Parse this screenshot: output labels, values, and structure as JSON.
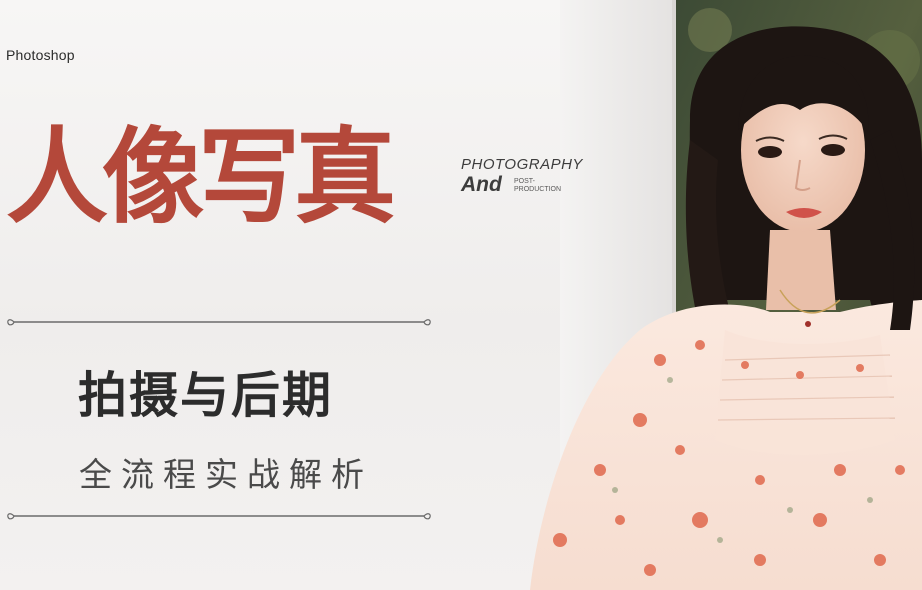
{
  "brand_label": "Photoshop",
  "title": "人像写真",
  "english": {
    "line1": "PHOTOGRAPHY",
    "and": "And",
    "post_line1": "POST-",
    "post_line2": "PRODUCTION"
  },
  "subtitle": "拍摄与后期",
  "tagline": "全流程实战解析",
  "colors": {
    "title": "#b4483a",
    "subtitle": "#2c2c2c",
    "divider": "#6b6b6b"
  }
}
